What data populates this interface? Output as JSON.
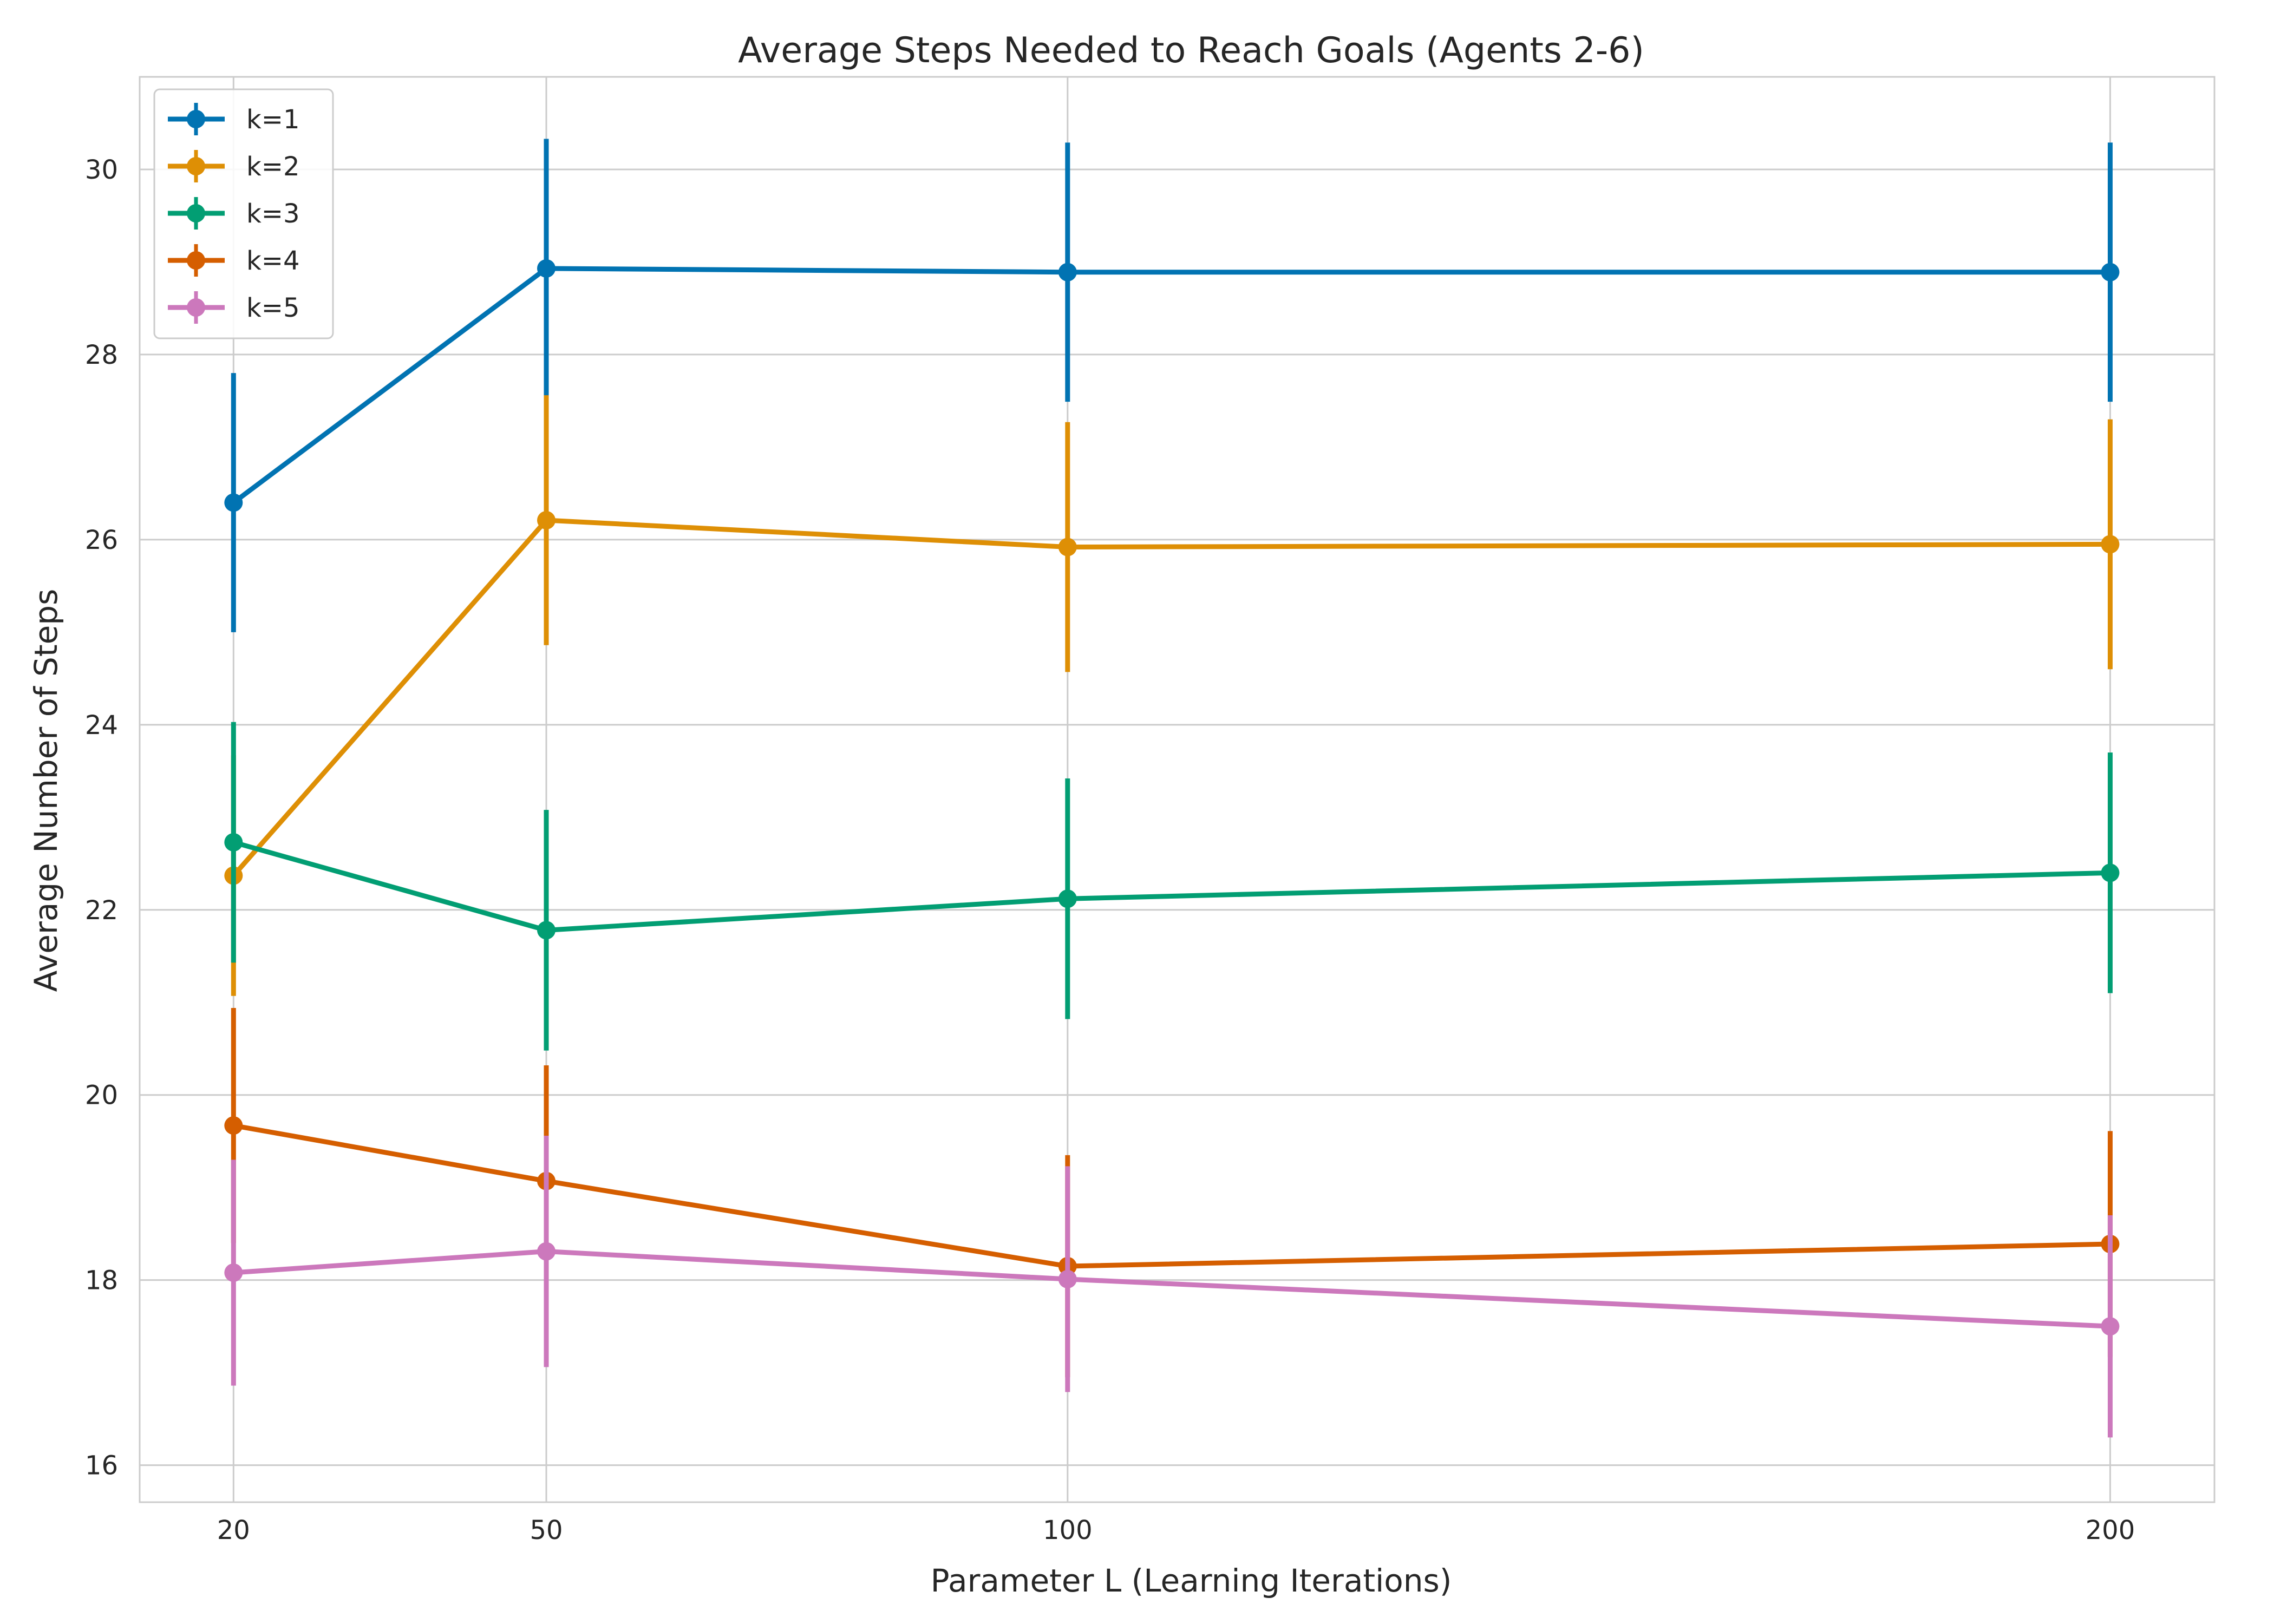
{
  "chart_data": {
    "type": "line",
    "title": "Average Steps Needed to Reach Goals (Agents 2-6)",
    "xlabel": "Parameter L (Learning Iterations)",
    "ylabel": "Average Number of Steps",
    "x": [
      20,
      50,
      100,
      200
    ],
    "xticks": [
      "20",
      "50",
      "100",
      "200"
    ],
    "xlim": [
      11,
      210
    ],
    "ylim": [
      15.6,
      31.0
    ],
    "yticks": [
      16,
      18,
      20,
      22,
      24,
      26,
      28,
      30
    ],
    "grid": true,
    "legend_position": "top-left",
    "series": [
      {
        "name": "k=1",
        "color": "#0173b2",
        "values": [
          26.4,
          28.93,
          28.89,
          28.89
        ],
        "errors": [
          1.4,
          1.4,
          1.4,
          1.4
        ]
      },
      {
        "name": "k=2",
        "color": "#de8f05",
        "values": [
          22.37,
          26.21,
          25.92,
          25.95
        ],
        "errors": [
          1.3,
          1.35,
          1.35,
          1.35
        ]
      },
      {
        "name": "k=3",
        "color": "#029e73",
        "values": [
          22.73,
          21.78,
          22.12,
          22.4
        ],
        "errors": [
          1.3,
          1.3,
          1.3,
          1.3
        ]
      },
      {
        "name": "k=4",
        "color": "#d55e00",
        "values": [
          19.67,
          19.07,
          18.15,
          18.39
        ],
        "errors": [
          1.27,
          1.25,
          1.2,
          1.22
        ]
      },
      {
        "name": "k=5",
        "color": "#cc78bc",
        "values": [
          18.08,
          18.31,
          18.01,
          17.5
        ],
        "errors": [
          1.22,
          1.25,
          1.22,
          1.2
        ]
      }
    ]
  }
}
